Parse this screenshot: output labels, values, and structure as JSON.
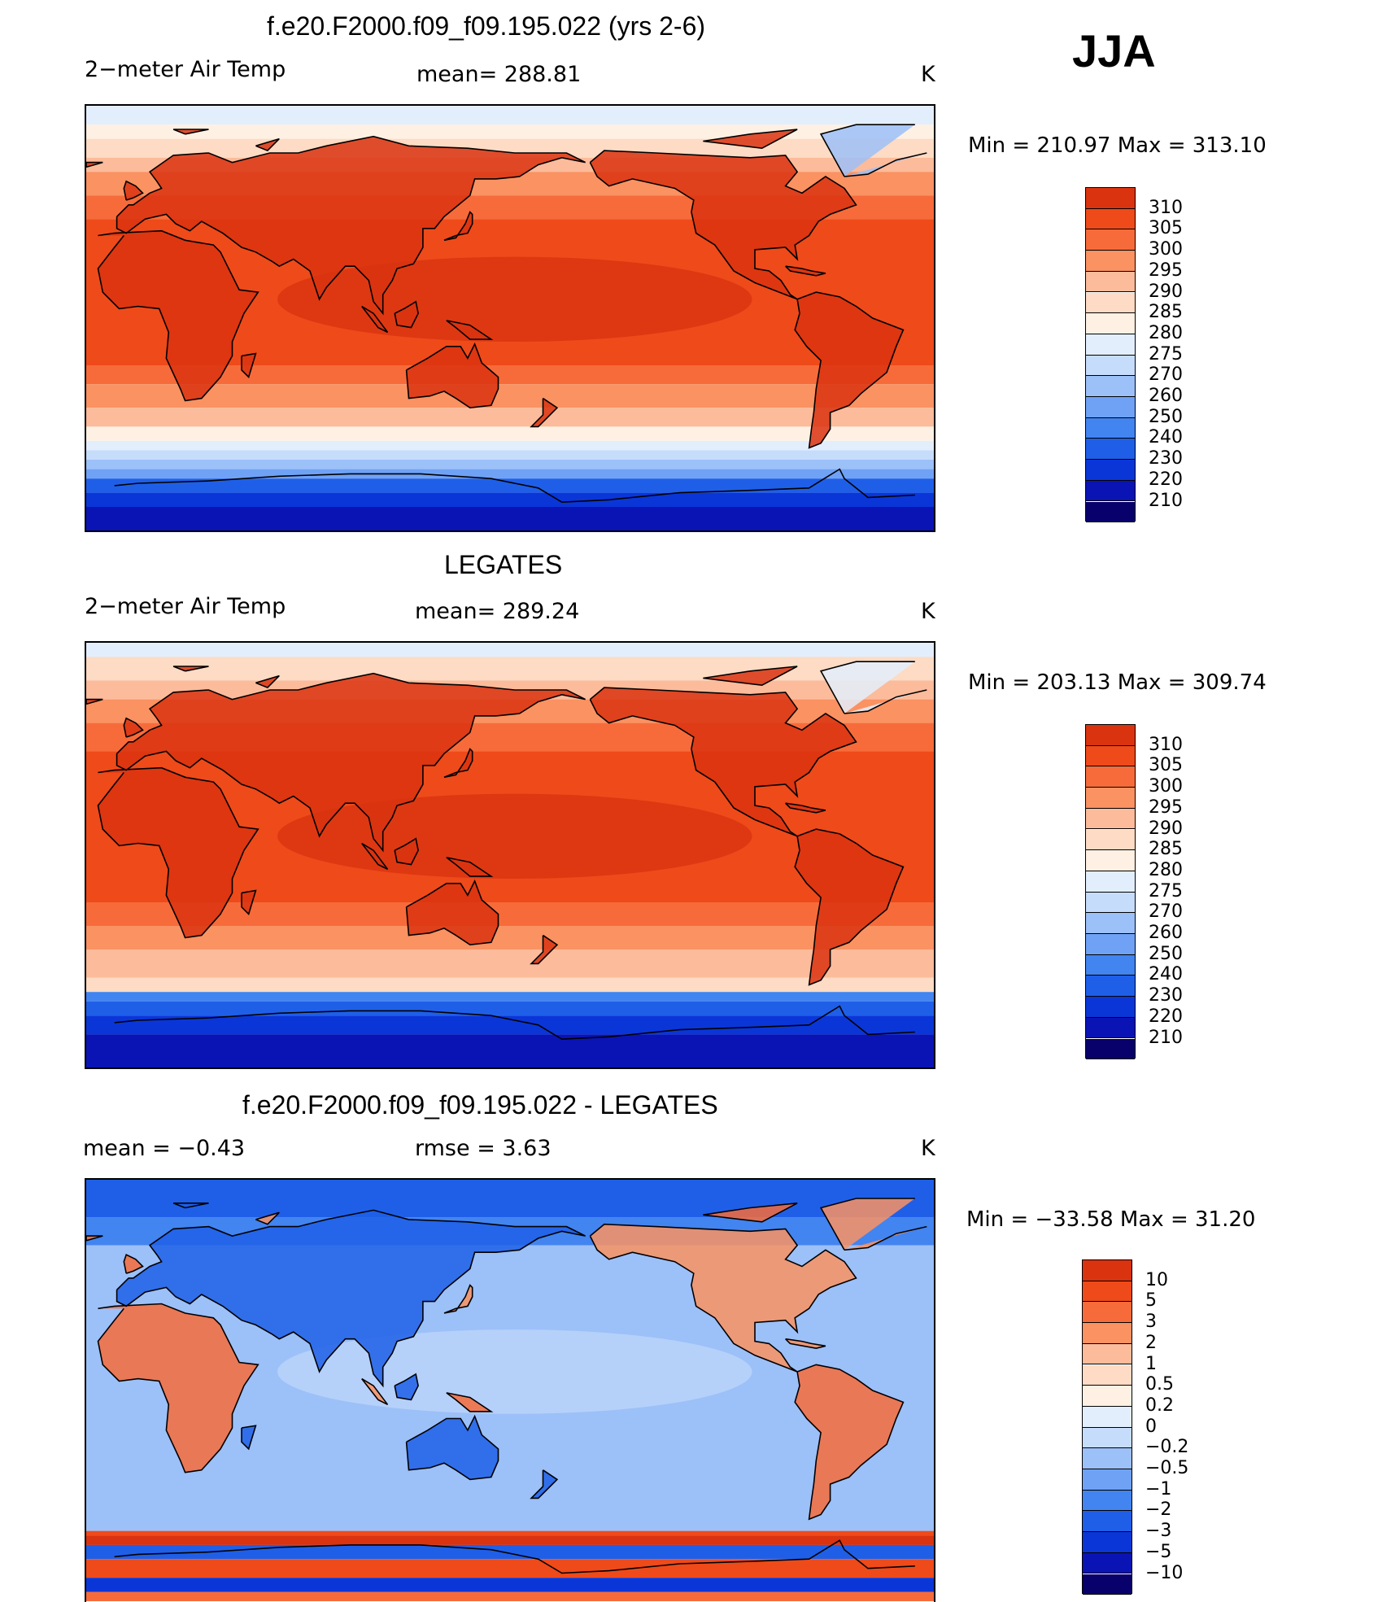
{
  "season": "JJA",
  "palette_temp": [
    "#08006b",
    "#0a14b4",
    "#0a36d8",
    "#1f5fe8",
    "#4284f0",
    "#6fa2f5",
    "#9cc0f8",
    "#c6dcfb",
    "#e3eefd",
    "#fef1e3",
    "#fddbc4",
    "#fcbb9a",
    "#fa9262",
    "#f76b3a",
    "#ef4a1a",
    "#d93310",
    "#b51f0a",
    "#8c0d04"
  ],
  "palette_diff": [
    "#08006b",
    "#0a14b4",
    "#0a36d8",
    "#1f5fe8",
    "#4284f0",
    "#6fa2f5",
    "#9cc0f8",
    "#c6dcfb",
    "#e3eefd",
    "#fef1e3",
    "#fddbc4",
    "#fcbb9a",
    "#fa9262",
    "#f76b3a",
    "#ef4a1a",
    "#d93310",
    "#b51f0a",
    "#8c0d04"
  ],
  "panels": [
    {
      "title": "f.e20.F2000.f09_f09.195.022 (yrs 2-6)",
      "left_label": "2−meter Air Temp",
      "center_label": "mean=  288.81",
      "units": "K",
      "minmax": "Min  =  210.97  Max  =  313.10",
      "colorbar_labels": [
        "310",
        "305",
        "300",
        "295",
        "290",
        "285",
        "280",
        "275",
        "270",
        "260",
        "250",
        "240",
        "230",
        "220",
        "210"
      ]
    },
    {
      "title": "LEGATES",
      "left_label": "2−meter Air Temp",
      "center_label": "mean=  289.24",
      "units": "K",
      "minmax": "Min  =  203.13  Max  =  309.74",
      "colorbar_labels": [
        "310",
        "305",
        "300",
        "295",
        "290",
        "285",
        "280",
        "275",
        "270",
        "260",
        "250",
        "240",
        "230",
        "220",
        "210"
      ]
    },
    {
      "title": "f.e20.F2000.f09_f09.195.022 - LEGATES",
      "left_label": "mean  =     −0.43",
      "center_label": "rmse  =      3.63",
      "units": "K",
      "minmax": "Min  =  −33.58  Max  =    31.20",
      "colorbar_labels": [
        "10",
        "5",
        "3",
        "2",
        "1",
        "0.5",
        "0.2",
        "0",
        "−0.2",
        "−0.5",
        "−1",
        "−2",
        "−3",
        "−5",
        "−10"
      ]
    }
  ],
  "chart_data": [
    {
      "type": "heatmap",
      "title": "f.e20.F2000.f09_f09.195.022 (yrs 2-6)",
      "variable": "2−meter Air Temp",
      "units": "K",
      "mean": 288.81,
      "min": 210.97,
      "max": 313.1,
      "contour_levels": [
        210,
        220,
        230,
        240,
        250,
        260,
        270,
        275,
        280,
        285,
        290,
        295,
        300,
        305,
        310
      ]
    },
    {
      "type": "heatmap",
      "title": "LEGATES",
      "variable": "2−meter Air Temp",
      "units": "K",
      "mean": 289.24,
      "min": 203.13,
      "max": 309.74,
      "contour_levels": [
        210,
        220,
        230,
        240,
        250,
        260,
        270,
        275,
        280,
        285,
        290,
        295,
        300,
        305,
        310
      ]
    },
    {
      "type": "heatmap",
      "title": "f.e20.F2000.f09_f09.195.022 - LEGATES",
      "units": "K",
      "mean": -0.43,
      "rmse": 3.63,
      "min": -33.58,
      "max": 31.2,
      "contour_levels": [
        -10,
        -5,
        -3,
        -2,
        -1,
        -0.5,
        -0.2,
        0,
        0.2,
        0.5,
        1,
        2,
        3,
        5,
        10
      ]
    }
  ]
}
